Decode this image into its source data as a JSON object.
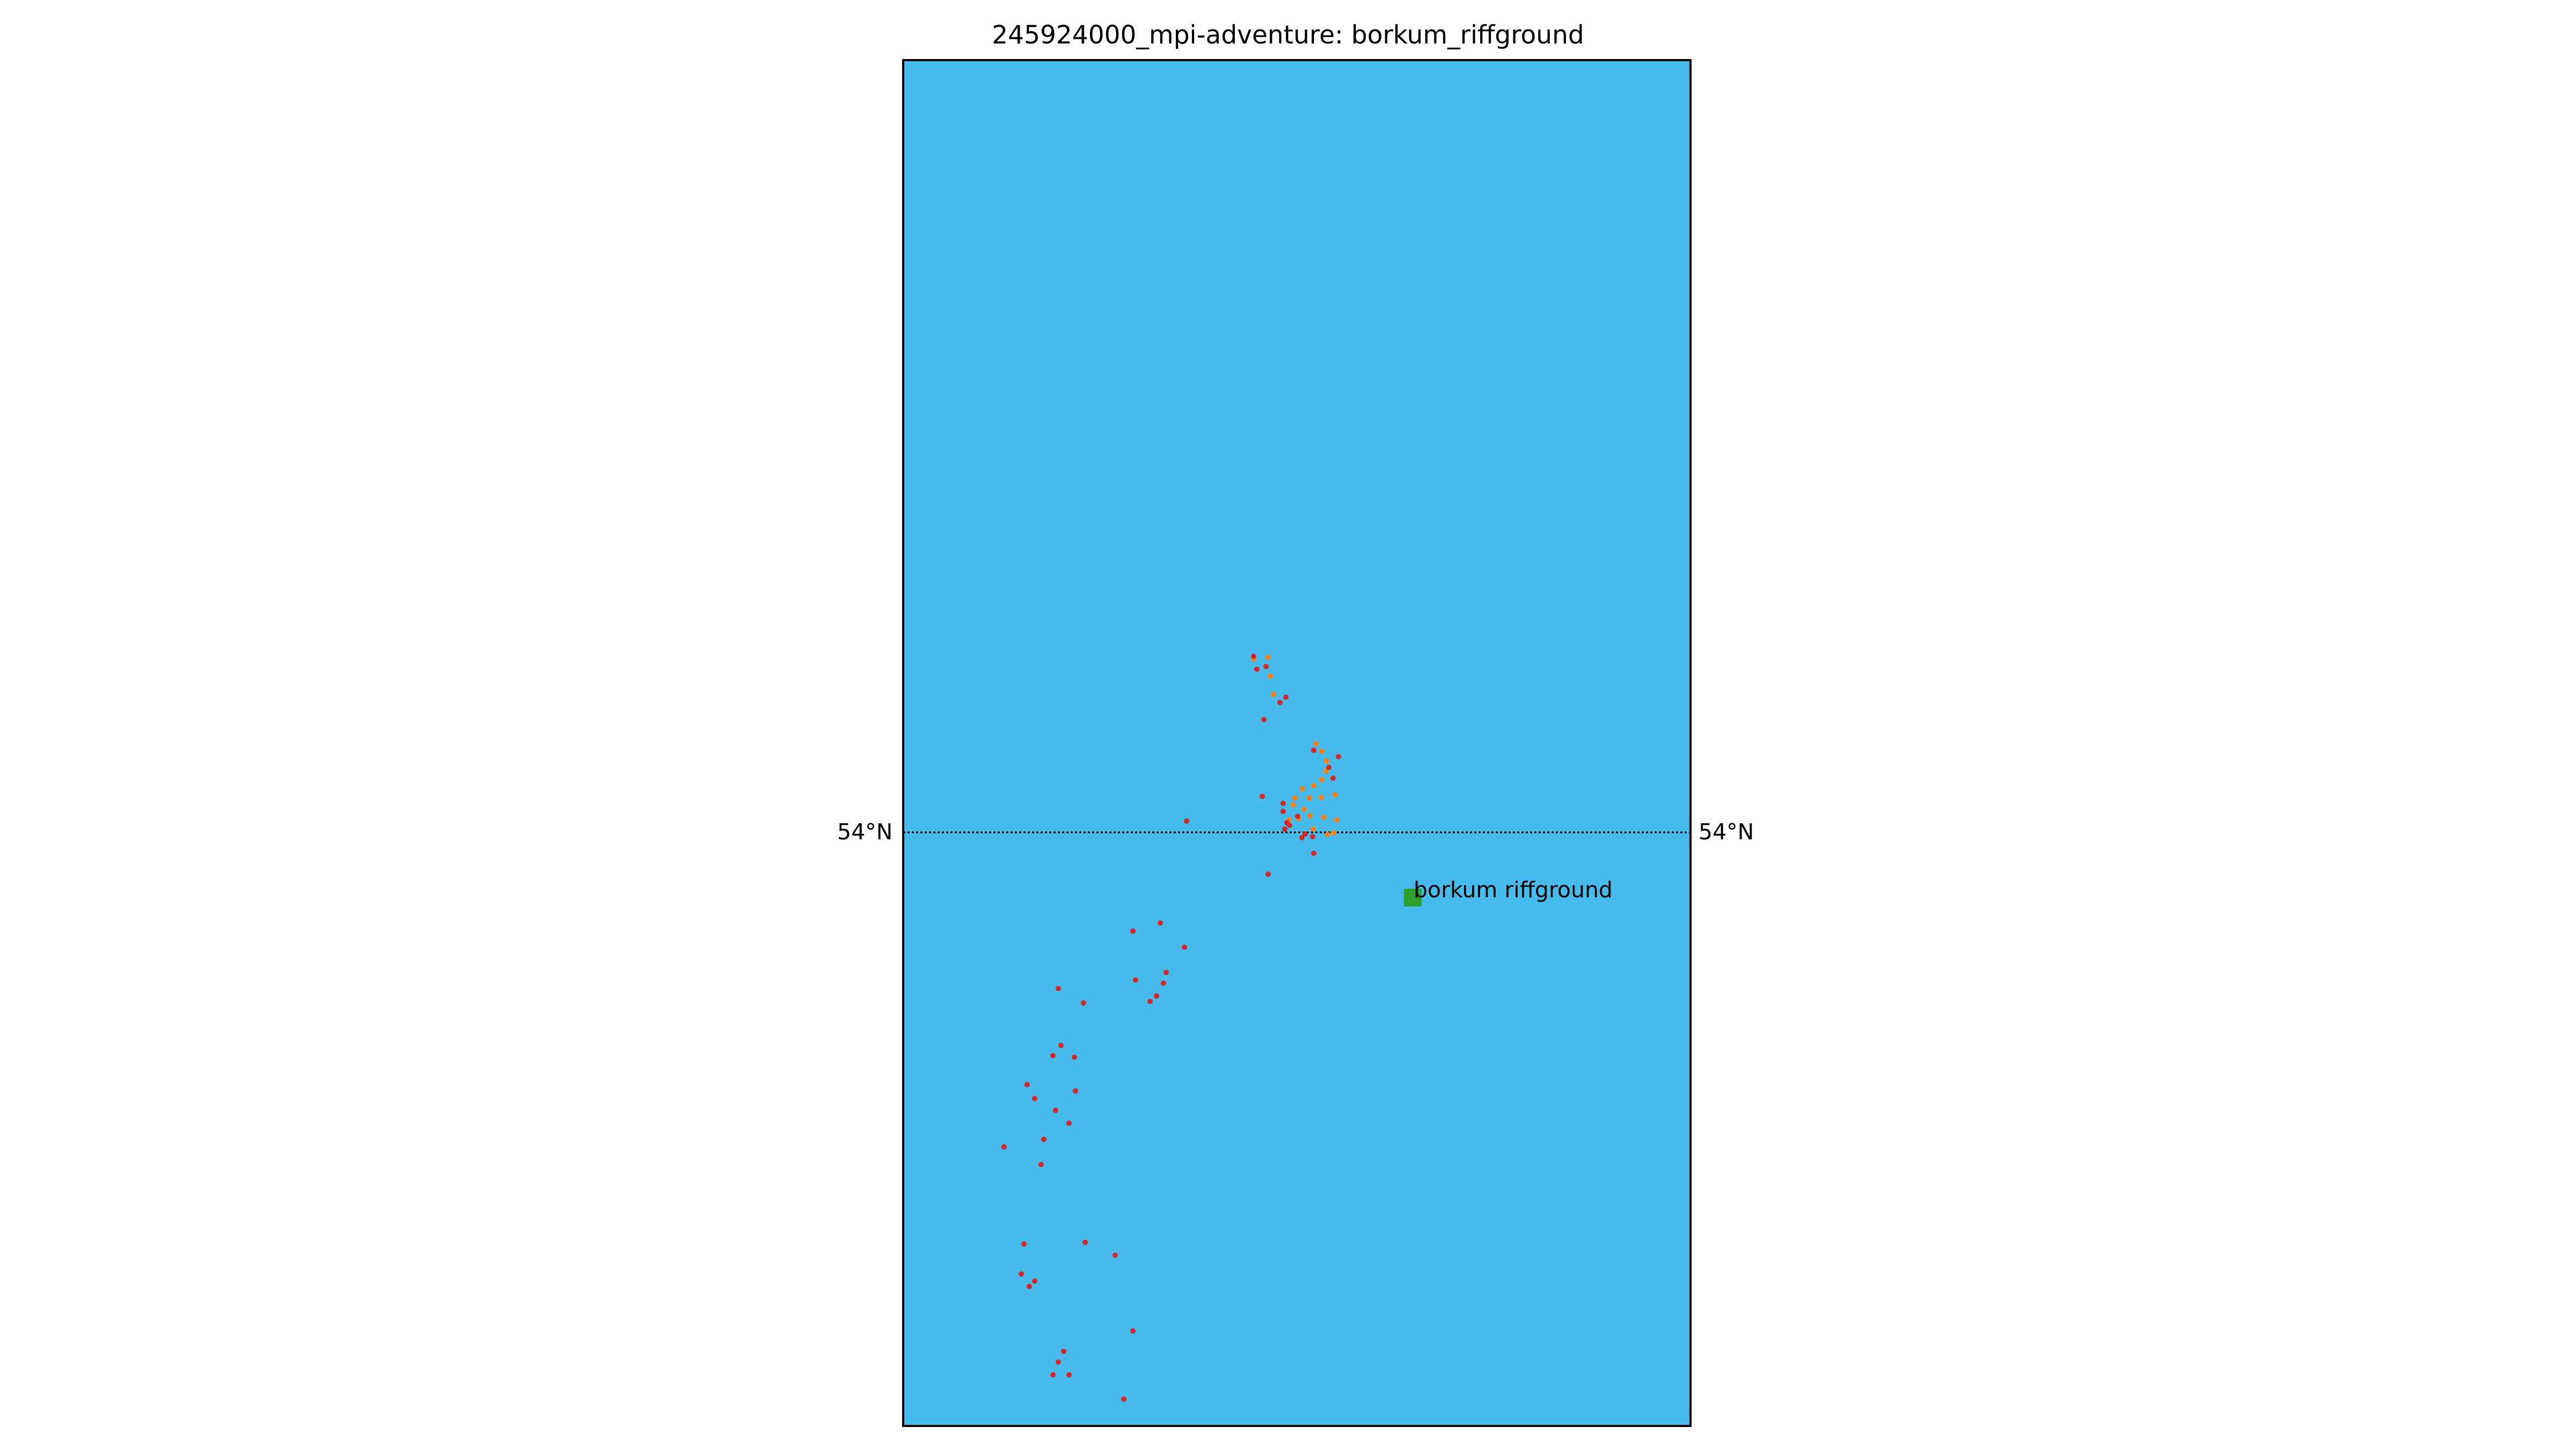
{
  "title": "245924000_mpi-adventure: borkum_riffground",
  "map": {
    "ocean_color": "#47BBEC",
    "parallel_label_left": "54°N",
    "parallel_label_right": "54°N",
    "station": {
      "label": "borkum riffground",
      "color": "#2CA02C"
    },
    "track_colors": {
      "red": "#D62728",
      "orange": "#FF7F0E"
    }
  }
}
